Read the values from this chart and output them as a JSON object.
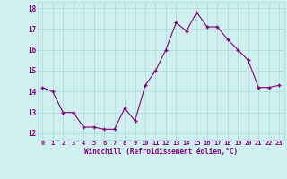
{
  "x": [
    0,
    1,
    2,
    3,
    4,
    5,
    6,
    7,
    8,
    9,
    10,
    11,
    12,
    13,
    14,
    15,
    16,
    17,
    18,
    19,
    20,
    21,
    22,
    23
  ],
  "y": [
    14.2,
    14.0,
    13.0,
    13.0,
    12.3,
    12.3,
    12.2,
    12.2,
    13.2,
    12.6,
    14.3,
    15.0,
    16.0,
    17.3,
    16.9,
    17.8,
    17.1,
    17.1,
    16.5,
    16.0,
    15.5,
    14.2,
    14.2,
    14.3
  ],
  "xlabel": "Windchill (Refroidissement éolien,°C)",
  "ylabel_ticks": [
    12,
    13,
    14,
    15,
    16,
    17,
    18
  ],
  "ylim": [
    11.7,
    18.3
  ],
  "xlim": [
    -0.5,
    23.5
  ],
  "line_color": "#800080",
  "marker_color": "#800080",
  "bg_color": "#d0f0f0",
  "grid_color": "#aedddd",
  "tick_color": "#800080",
  "label_color": "#800080",
  "figsize": [
    3.2,
    2.0
  ],
  "dpi": 100
}
